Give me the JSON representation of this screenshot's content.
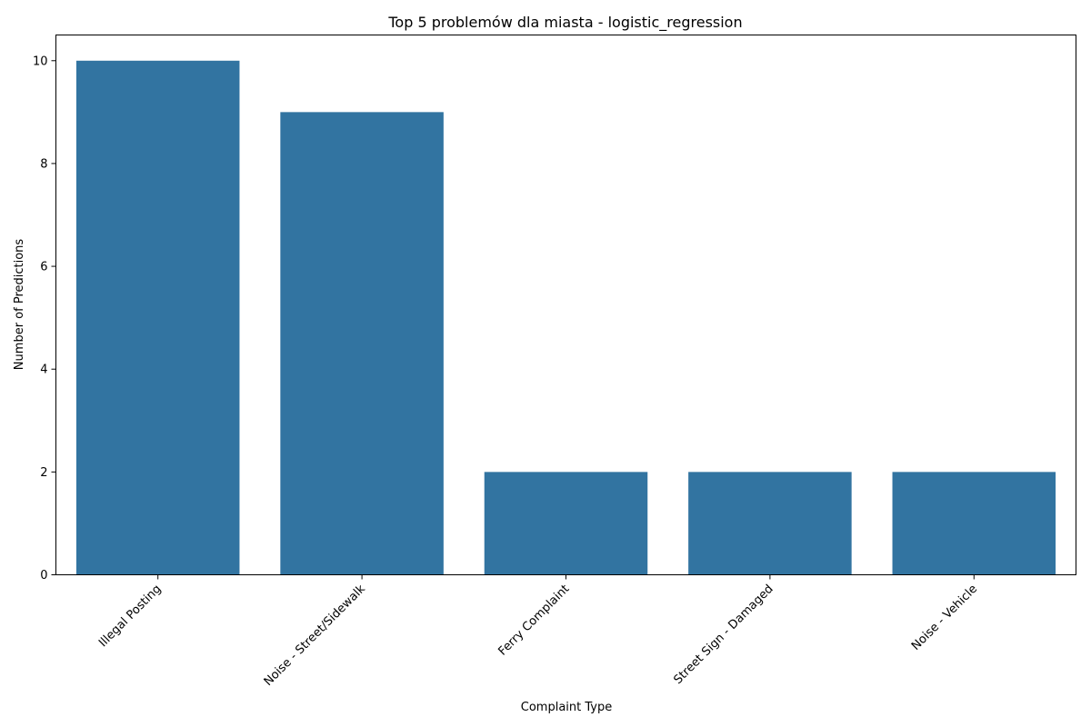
{
  "chart_data": {
    "type": "bar",
    "title": "Top 5 problemów dla miasta - logistic_regression",
    "xlabel": "Complaint Type",
    "ylabel": "Number of Predictions",
    "categories": [
      "Illegal Posting",
      "Noise - Street/Sidewalk",
      "Ferry Complaint",
      "Street Sign - Damaged",
      "Noise - Vehicle"
    ],
    "values": [
      10,
      9,
      2,
      2,
      2
    ],
    "ylim": [
      0,
      10.5
    ],
    "yticks": [
      0,
      2,
      4,
      6,
      8,
      10
    ],
    "bar_color": "#3274a1",
    "grid": false,
    "legend": "none"
  }
}
